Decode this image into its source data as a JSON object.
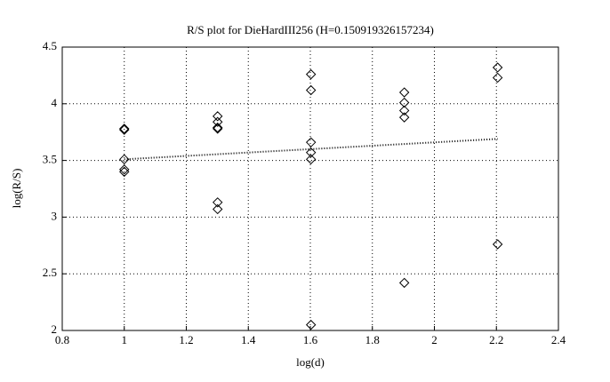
{
  "chart_data": {
    "type": "scatter",
    "title": "R/S plot for DieHardIII256 (H=0.150919326157234)",
    "xlabel": "log(d)",
    "ylabel": "log(R/S)",
    "x": [
      1,
      1,
      1,
      1,
      1,
      1.301,
      1.301,
      1.301,
      1.301,
      1.301,
      1.301,
      1.602,
      1.602,
      1.602,
      1.602,
      1.602,
      1.602,
      1.903,
      1.903,
      1.903,
      1.903,
      1.903,
      2.204,
      2.204,
      2.204
    ],
    "values": [
      3.78,
      3.77,
      3.51,
      3.42,
      3.4,
      3.89,
      3.84,
      3.79,
      3.78,
      3.13,
      3.07,
      4.26,
      4.12,
      3.66,
      3.57,
      3.51,
      2.05,
      4.1,
      4.01,
      3.94,
      3.88,
      2.42,
      4.32,
      4.23,
      2.76
    ],
    "color": "#000000",
    "fit": {
      "x": [
        1,
        2.204
      ],
      "values": [
        3.51,
        3.69
      ]
    },
    "xlim": [
      0.8,
      2.4
    ],
    "xticks": [
      0.8,
      1,
      1.2,
      1.4,
      1.6,
      1.8,
      2,
      2.2,
      2.4
    ],
    "ylim": [
      2,
      4.5
    ],
    "yticks": [
      2,
      2.5,
      3,
      3.5,
      4,
      4.5
    ],
    "grid": true
  }
}
